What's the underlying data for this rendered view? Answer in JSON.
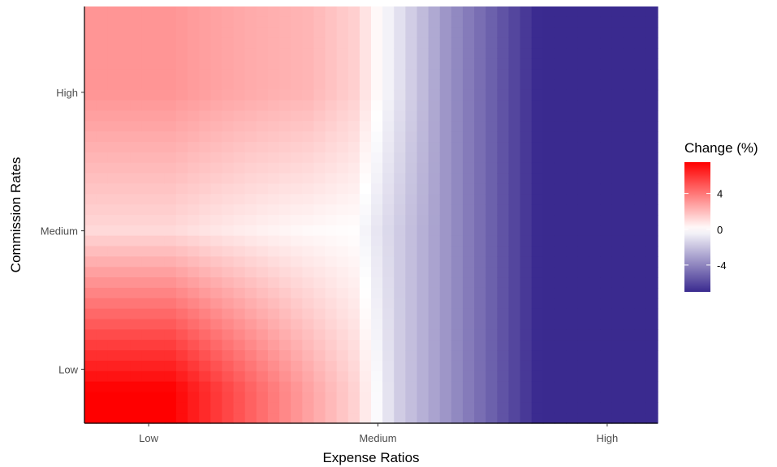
{
  "chart_data": {
    "type": "heatmap",
    "xlabel": "Expense Ratios",
    "ylabel": "Commission Rates",
    "x_ticks": [
      "Low",
      "Medium",
      "High"
    ],
    "y_ticks": [
      "Low",
      "Medium",
      "High"
    ],
    "x_range": [
      0.72,
      3.22
    ],
    "y_range": [
      0.61,
      3.62
    ],
    "legend": {
      "title": "Change (%)",
      "ticks": [
        4,
        0,
        -4
      ],
      "range": [
        -7,
        7.5
      ],
      "colors": {
        "low": "#3a2a8f",
        "mid": "#ffffff",
        "high": "#ff0000"
      },
      "placement": "right"
    },
    "grid": false
  }
}
